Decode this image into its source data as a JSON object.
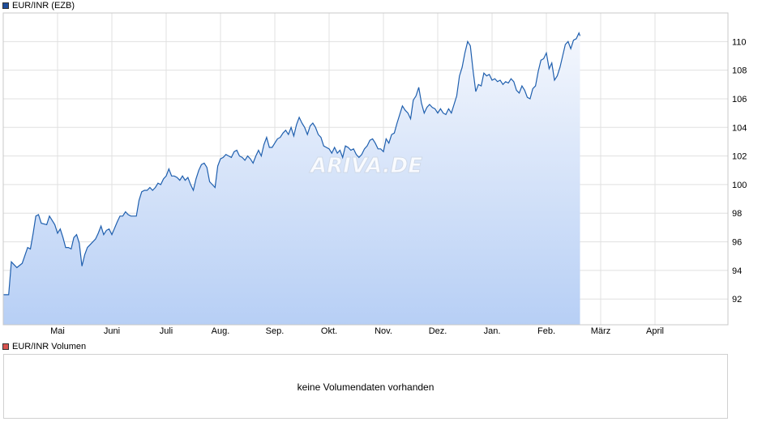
{
  "legend": {
    "price_label": "EUR/INR (EZB)",
    "price_color": "#1f4e9c",
    "volume_label": "EUR/INR Volumen",
    "volume_color": "#d9534f"
  },
  "watermark": "ARIVA.DE",
  "volume_panel": {
    "message": "keine Volumendaten vorhanden"
  },
  "chart_data": {
    "type": "area",
    "title": "EUR/INR (EZB)",
    "xlabel": "",
    "ylabel": "",
    "ylim": [
      90.2,
      112.0
    ],
    "yticks": [
      92,
      94,
      96,
      98,
      100,
      102,
      104,
      106,
      108,
      110
    ],
    "x_axis_labels": [
      "Mai",
      "Juni",
      "Juli",
      "Aug.",
      "Sep.",
      "Okt.",
      "Nov.",
      "Dez.",
      "Jan.",
      "Feb.",
      "März",
      "April"
    ],
    "grid": true,
    "legend_position": "top-left",
    "line_color": "#1f5fae",
    "fill_top": "#f4f7fd",
    "fill_bottom": "#b7cff5",
    "series": [
      {
        "name": "EUR/INR (EZB)",
        "values": [
          [
            0,
            92.3
          ],
          [
            0.1,
            92.3
          ],
          [
            0.15,
            94.6
          ],
          [
            0.25,
            94.2
          ],
          [
            0.35,
            94.5
          ],
          [
            0.45,
            95.6
          ],
          [
            0.5,
            95.5
          ],
          [
            0.55,
            96.6
          ],
          [
            0.6,
            97.8
          ],
          [
            0.65,
            97.9
          ],
          [
            0.7,
            97.3
          ],
          [
            0.8,
            97.2
          ],
          [
            0.85,
            97.8
          ],
          [
            0.9,
            97.5
          ],
          [
            0.95,
            97.2
          ],
          [
            1.0,
            96.6
          ],
          [
            1.05,
            96.9
          ],
          [
            1.1,
            96.3
          ],
          [
            1.15,
            95.6
          ],
          [
            1.2,
            95.6
          ],
          [
            1.25,
            95.5
          ],
          [
            1.3,
            96.3
          ],
          [
            1.35,
            96.5
          ],
          [
            1.4,
            95.9
          ],
          [
            1.45,
            94.3
          ],
          [
            1.5,
            95.1
          ],
          [
            1.55,
            95.6
          ],
          [
            1.6,
            95.8
          ],
          [
            1.7,
            96.2
          ],
          [
            1.75,
            96.6
          ],
          [
            1.8,
            97.1
          ],
          [
            1.85,
            96.5
          ],
          [
            1.9,
            96.8
          ],
          [
            1.95,
            96.9
          ],
          [
            2.0,
            96.5
          ],
          [
            2.1,
            97.4
          ],
          [
            2.15,
            97.8
          ],
          [
            2.2,
            97.8
          ],
          [
            2.25,
            98.1
          ],
          [
            2.3,
            97.9
          ],
          [
            2.35,
            97.8
          ],
          [
            2.45,
            97.8
          ],
          [
            2.5,
            98.9
          ],
          [
            2.55,
            99.5
          ],
          [
            2.6,
            99.6
          ],
          [
            2.65,
            99.6
          ],
          [
            2.7,
            99.8
          ],
          [
            2.75,
            99.6
          ],
          [
            2.8,
            99.8
          ],
          [
            2.85,
            100.1
          ],
          [
            2.9,
            100.0
          ],
          [
            2.95,
            100.4
          ],
          [
            3.0,
            100.6
          ],
          [
            3.05,
            101.1
          ],
          [
            3.1,
            100.6
          ],
          [
            3.15,
            100.6
          ],
          [
            3.2,
            100.5
          ],
          [
            3.25,
            100.3
          ],
          [
            3.3,
            100.6
          ],
          [
            3.35,
            100.3
          ],
          [
            3.4,
            100.5
          ],
          [
            3.45,
            100.0
          ],
          [
            3.5,
            99.6
          ],
          [
            3.55,
            100.4
          ],
          [
            3.6,
            101.0
          ],
          [
            3.65,
            101.4
          ],
          [
            3.7,
            101.5
          ],
          [
            3.75,
            101.2
          ],
          [
            3.8,
            100.2
          ],
          [
            3.85,
            100.0
          ],
          [
            3.9,
            99.8
          ],
          [
            3.95,
            101.3
          ],
          [
            4.0,
            101.8
          ],
          [
            4.05,
            101.9
          ],
          [
            4.1,
            102.1
          ],
          [
            4.15,
            102.0
          ],
          [
            4.2,
            101.9
          ],
          [
            4.25,
            102.3
          ],
          [
            4.3,
            102.4
          ],
          [
            4.35,
            102.0
          ],
          [
            4.4,
            101.9
          ],
          [
            4.45,
            101.7
          ],
          [
            4.5,
            102.0
          ],
          [
            4.55,
            101.8
          ],
          [
            4.6,
            101.5
          ],
          [
            4.65,
            102.0
          ],
          [
            4.7,
            102.4
          ],
          [
            4.75,
            102.0
          ],
          [
            4.8,
            102.8
          ],
          [
            4.85,
            103.3
          ],
          [
            4.9,
            102.6
          ],
          [
            4.95,
            102.6
          ],
          [
            5.0,
            102.9
          ],
          [
            5.05,
            103.2
          ],
          [
            5.1,
            103.3
          ],
          [
            5.15,
            103.6
          ],
          [
            5.2,
            103.8
          ],
          [
            5.25,
            103.5
          ],
          [
            5.3,
            104.0
          ],
          [
            5.35,
            103.4
          ],
          [
            5.4,
            104.2
          ],
          [
            5.45,
            104.7
          ],
          [
            5.5,
            104.3
          ],
          [
            5.55,
            104.0
          ],
          [
            5.6,
            103.5
          ],
          [
            5.65,
            104.1
          ],
          [
            5.7,
            104.3
          ],
          [
            5.75,
            104.0
          ],
          [
            5.8,
            103.5
          ],
          [
            5.85,
            103.3
          ],
          [
            5.9,
            102.7
          ],
          [
            5.95,
            102.6
          ],
          [
            6.0,
            102.5
          ],
          [
            6.05,
            102.2
          ],
          [
            6.1,
            102.6
          ],
          [
            6.15,
            102.2
          ],
          [
            6.2,
            102.4
          ],
          [
            6.25,
            101.9
          ],
          [
            6.3,
            102.7
          ],
          [
            6.35,
            102.6
          ],
          [
            6.4,
            102.4
          ],
          [
            6.45,
            102.5
          ],
          [
            6.5,
            102.1
          ],
          [
            6.55,
            101.9
          ],
          [
            6.6,
            102.1
          ],
          [
            6.65,
            102.5
          ],
          [
            6.7,
            102.7
          ],
          [
            6.75,
            103.1
          ],
          [
            6.8,
            103.2
          ],
          [
            6.85,
            102.9
          ],
          [
            6.9,
            102.5
          ],
          [
            6.95,
            102.5
          ],
          [
            7.0,
            102.3
          ],
          [
            7.05,
            103.2
          ],
          [
            7.1,
            102.9
          ],
          [
            7.15,
            103.5
          ],
          [
            7.2,
            103.6
          ],
          [
            7.25,
            104.3
          ],
          [
            7.3,
            104.9
          ],
          [
            7.35,
            105.5
          ],
          [
            7.4,
            105.2
          ],
          [
            7.45,
            105.0
          ],
          [
            7.5,
            104.6
          ],
          [
            7.55,
            105.9
          ],
          [
            7.6,
            106.2
          ],
          [
            7.65,
            106.8
          ],
          [
            7.7,
            105.7
          ],
          [
            7.75,
            105.0
          ],
          [
            7.8,
            105.4
          ],
          [
            7.85,
            105.6
          ],
          [
            7.9,
            105.4
          ],
          [
            7.95,
            105.3
          ],
          [
            8.0,
            105.0
          ],
          [
            8.05,
            105.3
          ],
          [
            8.1,
            105.0
          ],
          [
            8.15,
            104.9
          ],
          [
            8.2,
            105.3
          ],
          [
            8.25,
            105.0
          ],
          [
            8.3,
            105.6
          ],
          [
            8.35,
            106.2
          ],
          [
            8.4,
            107.6
          ],
          [
            8.45,
            108.2
          ],
          [
            8.5,
            109.2
          ],
          [
            8.55,
            110.0
          ],
          [
            8.6,
            109.7
          ],
          [
            8.65,
            108.0
          ],
          [
            8.7,
            106.5
          ],
          [
            8.75,
            107.0
          ],
          [
            8.8,
            106.9
          ],
          [
            8.85,
            107.8
          ],
          [
            8.9,
            107.6
          ],
          [
            8.95,
            107.7
          ],
          [
            9.0,
            107.3
          ],
          [
            9.05,
            107.4
          ],
          [
            9.1,
            107.2
          ],
          [
            9.15,
            107.3
          ],
          [
            9.2,
            107.0
          ],
          [
            9.25,
            107.2
          ],
          [
            9.3,
            107.1
          ],
          [
            9.35,
            107.4
          ],
          [
            9.4,
            107.2
          ],
          [
            9.45,
            106.6
          ],
          [
            9.5,
            106.4
          ],
          [
            9.55,
            106.9
          ],
          [
            9.6,
            106.6
          ],
          [
            9.65,
            106.1
          ],
          [
            9.7,
            106.0
          ],
          [
            9.75,
            106.7
          ],
          [
            9.8,
            106.9
          ],
          [
            9.85,
            107.9
          ],
          [
            9.9,
            108.7
          ],
          [
            9.95,
            108.8
          ],
          [
            10.0,
            109.2
          ],
          [
            10.05,
            108.1
          ],
          [
            10.1,
            108.5
          ],
          [
            10.15,
            107.3
          ],
          [
            10.2,
            107.6
          ],
          [
            10.25,
            108.2
          ],
          [
            10.3,
            109.0
          ],
          [
            10.35,
            109.8
          ],
          [
            10.4,
            110.0
          ],
          [
            10.45,
            109.5
          ],
          [
            10.5,
            110.1
          ],
          [
            10.55,
            110.2
          ],
          [
            10.6,
            110.6
          ],
          [
            10.62,
            110.4
          ]
        ]
      }
    ]
  }
}
